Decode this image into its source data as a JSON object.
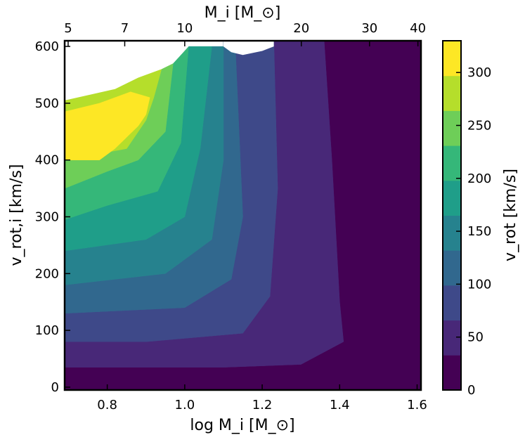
{
  "chart_data": {
    "type": "heatmap",
    "xlabel": "log M_i [M_⊙]",
    "ylabel": "v_rot,i [km/s]",
    "top_xlabel": "M_i [M_⊙]",
    "colorbar_label": "v_rot [km/s]",
    "xlim": [
      0.69,
      1.61
    ],
    "ylim": [
      -5,
      610
    ],
    "x_ticks": [
      0.8,
      1.0,
      1.2,
      1.4,
      1.6
    ],
    "x_tick_labels": [
      "0.8",
      "1.0",
      "1.2",
      "1.4",
      "1.6"
    ],
    "y_ticks": [
      0,
      100,
      200,
      300,
      400,
      500,
      600
    ],
    "y_tick_labels": [
      "0",
      "100",
      "200",
      "300",
      "400",
      "500",
      "600"
    ],
    "top_ticks_mass": [
      5,
      7,
      10,
      20,
      30,
      40
    ],
    "top_tick_labels": [
      "5",
      "7",
      "10",
      "20",
      "30",
      "40"
    ],
    "colorbar_ticks": [
      0,
      50,
      100,
      150,
      200,
      250,
      300
    ],
    "colorbar_tick_labels": [
      "0",
      "50",
      "100",
      "150",
      "200",
      "250",
      "300"
    ],
    "colorbar_range": [
      0,
      330
    ],
    "colorbar_levels": [
      {
        "from": 0,
        "to": 33,
        "color": "#440154"
      },
      {
        "from": 33,
        "to": 66,
        "color": "#482878"
      },
      {
        "from": 66,
        "to": 99,
        "color": "#3e4989"
      },
      {
        "from": 99,
        "to": 132,
        "color": "#31688e"
      },
      {
        "from": 132,
        "to": 165,
        "color": "#26828e"
      },
      {
        "from": 165,
        "to": 198,
        "color": "#1f9e89"
      },
      {
        "from": 198,
        "to": 231,
        "color": "#35b779"
      },
      {
        "from": 231,
        "to": 264,
        "color": "#6ece58"
      },
      {
        "from": 264,
        "to": 297,
        "color": "#b5de2b"
      },
      {
        "from": 297,
        "to": 330,
        "color": "#fde725"
      }
    ],
    "grid": false,
    "regions": [
      {
        "level": 0,
        "points": [
          [
            0.69,
            -5
          ],
          [
            1.61,
            -5
          ],
          [
            1.61,
            610
          ],
          [
            1.36,
            610
          ],
          [
            1.38,
            400
          ],
          [
            1.4,
            150
          ],
          [
            1.41,
            80
          ],
          [
            1.3,
            40
          ],
          [
            1.1,
            35
          ],
          [
            0.69,
            35
          ]
        ]
      },
      {
        "level": 1,
        "points": [
          [
            0.69,
            35
          ],
          [
            1.1,
            35
          ],
          [
            1.3,
            40
          ],
          [
            1.41,
            80
          ],
          [
            1.4,
            150
          ],
          [
            1.38,
            400
          ],
          [
            1.36,
            610
          ],
          [
            1.23,
            610
          ],
          [
            1.24,
            350
          ],
          [
            1.22,
            160
          ],
          [
            1.15,
            95
          ],
          [
            0.9,
            80
          ],
          [
            0.69,
            80
          ]
        ]
      },
      {
        "level": 2,
        "points": [
          [
            0.69,
            80
          ],
          [
            0.9,
            80
          ],
          [
            1.15,
            95
          ],
          [
            1.22,
            160
          ],
          [
            1.24,
            350
          ],
          [
            1.23,
            610
          ],
          [
            1.13,
            610
          ],
          [
            1.15,
            300
          ],
          [
            1.12,
            190
          ],
          [
            1.0,
            140
          ],
          [
            0.69,
            130
          ]
        ]
      },
      {
        "level": 3,
        "points": [
          [
            0.69,
            130
          ],
          [
            1.0,
            140
          ],
          [
            1.12,
            190
          ],
          [
            1.15,
            300
          ],
          [
            1.13,
            610
          ],
          [
            1.1,
            610
          ],
          [
            1.1,
            400
          ],
          [
            1.07,
            260
          ],
          [
            0.95,
            200
          ],
          [
            0.69,
            180
          ]
        ]
      },
      {
        "level": 4,
        "points": [
          [
            0.69,
            180
          ],
          [
            0.95,
            200
          ],
          [
            1.07,
            260
          ],
          [
            1.1,
            400
          ],
          [
            1.1,
            600
          ],
          [
            1.07,
            600
          ],
          [
            1.04,
            420
          ],
          [
            1.0,
            300
          ],
          [
            0.9,
            260
          ],
          [
            0.69,
            240
          ]
        ]
      },
      {
        "level": 5,
        "points": [
          [
            0.69,
            240
          ],
          [
            0.9,
            260
          ],
          [
            1.0,
            300
          ],
          [
            1.04,
            420
          ],
          [
            1.07,
            600
          ],
          [
            1.01,
            600
          ],
          [
            0.99,
            430
          ],
          [
            0.93,
            345
          ],
          [
            0.8,
            320
          ],
          [
            0.69,
            295
          ]
        ]
      },
      {
        "level": 6,
        "points": [
          [
            0.69,
            295
          ],
          [
            0.8,
            320
          ],
          [
            0.93,
            345
          ],
          [
            0.99,
            430
          ],
          [
            1.01,
            600
          ],
          [
            0.97,
            570
          ],
          [
            0.95,
            450
          ],
          [
            0.88,
            400
          ],
          [
            0.8,
            380
          ],
          [
            0.69,
            350
          ]
        ]
      },
      {
        "level": 7,
        "points": [
          [
            0.69,
            350
          ],
          [
            0.8,
            380
          ],
          [
            0.88,
            400
          ],
          [
            0.95,
            450
          ],
          [
            0.97,
            570
          ],
          [
            0.94,
            560
          ],
          [
            0.92,
            510
          ],
          [
            0.9,
            470
          ],
          [
            0.85,
            420
          ],
          [
            0.69,
            400
          ]
        ]
      },
      {
        "level": 8,
        "points": [
          [
            0.69,
            400
          ],
          [
            0.85,
            420
          ],
          [
            0.9,
            470
          ],
          [
            0.92,
            510
          ],
          [
            0.94,
            560
          ],
          [
            0.88,
            545
          ],
          [
            0.82,
            525
          ],
          [
            0.69,
            505
          ]
        ]
      },
      {
        "level": 9,
        "points": [
          [
            0.69,
            400
          ],
          [
            0.78,
            400
          ],
          [
            0.82,
            420
          ],
          [
            0.88,
            460
          ],
          [
            0.9,
            480
          ],
          [
            0.91,
            510
          ],
          [
            0.86,
            520
          ],
          [
            0.78,
            500
          ],
          [
            0.69,
            485
          ]
        ]
      }
    ],
    "no_data_regions": [
      {
        "points": [
          [
            0.69,
            505
          ],
          [
            0.82,
            525
          ],
          [
            0.88,
            545
          ],
          [
            0.94,
            560
          ],
          [
            0.97,
            570
          ],
          [
            1.01,
            600
          ],
          [
            1.01,
            610
          ],
          [
            0.69,
            610
          ]
        ]
      },
      {
        "points": [
          [
            1.13,
            610
          ],
          [
            1.1,
            610
          ],
          [
            1.1,
            600
          ],
          [
            1.12,
            590
          ],
          [
            1.15,
            585
          ],
          [
            1.2,
            592
          ],
          [
            1.23,
            600
          ],
          [
            1.23,
            610
          ]
        ]
      }
    ]
  }
}
